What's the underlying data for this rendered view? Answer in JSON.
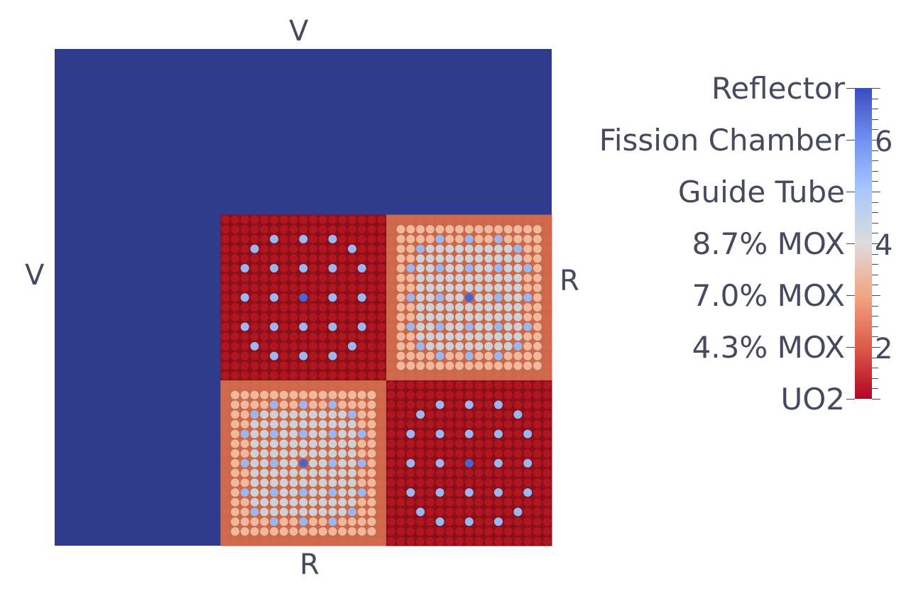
{
  "boundary_labels": {
    "top": "V",
    "left": "V",
    "right": "R",
    "bottom": "R"
  },
  "legend": {
    "categories": [
      {
        "label": "Reflector",
        "value": 7
      },
      {
        "label": "Fission Chamber",
        "value": 6
      },
      {
        "label": "Guide Tube",
        "value": 5
      },
      {
        "label": "8.7% MOX",
        "value": 4
      },
      {
        "label": "7.0% MOX",
        "value": 3
      },
      {
        "label": "4.3% MOX",
        "value": 2
      },
      {
        "label": "UO2",
        "value": 1
      }
    ],
    "tick_labels": [
      "6",
      "4",
      "2"
    ],
    "range": [
      1,
      7
    ]
  },
  "colors": {
    "reflector": "#2f3b8c",
    "fission_chamber": "#4a64cf",
    "guide_tube": "#9cb6f0",
    "mox_87": "#cfcfd6",
    "mox_70": "#f0b89d",
    "mox_43": "#d2694c",
    "uo2": "#b01620",
    "text": "#474a5e"
  },
  "core_layout": {
    "assembly_grid": [
      [
        "Reflector",
        "Reflector",
        "Reflector"
      ],
      [
        "Reflector",
        "UO2",
        "MOX"
      ],
      [
        "Reflector",
        "MOX",
        "UO2"
      ]
    ],
    "pins_per_side": 17
  }
}
